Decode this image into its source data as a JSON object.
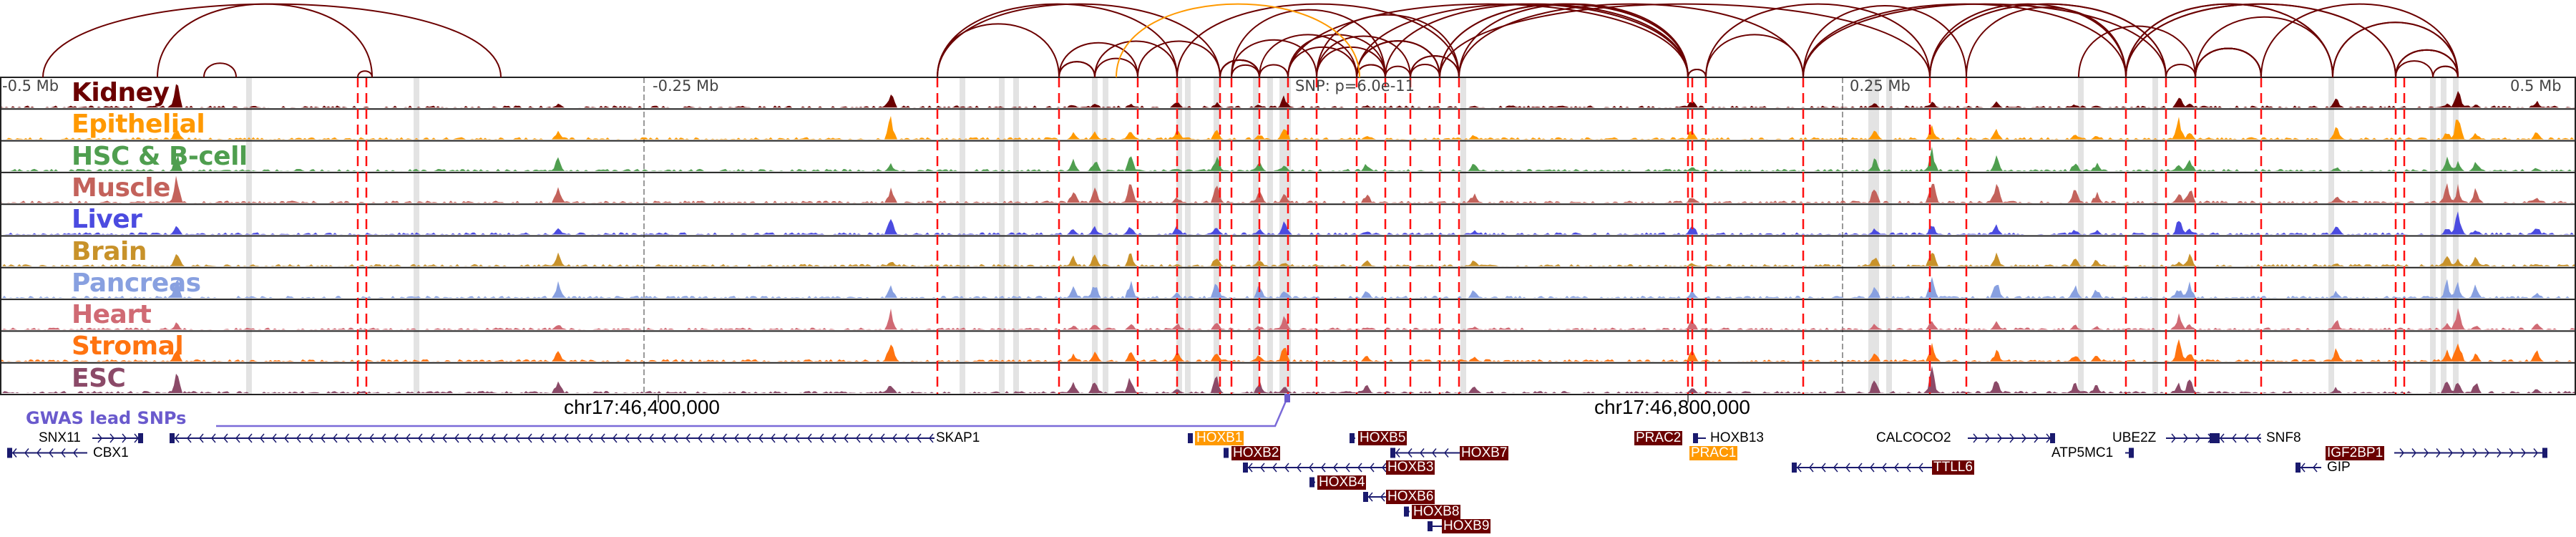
{
  "axis": {
    "labels": [
      "-0.5 Mb",
      "-0.25 Mb",
      "0.25 Mb",
      "0.5 Mb"
    ],
    "snp_label": "SNP: p=6.0e-11"
  },
  "tracks": [
    {
      "name": "Kidney",
      "color": "#6b0000"
    },
    {
      "name": "Epithelial",
      "color": "#ff9900"
    },
    {
      "name": "HSC & B-cell",
      "color": "#4f9e4f"
    },
    {
      "name": "Muscle",
      "color": "#c3625b"
    },
    {
      "name": "Liver",
      "color": "#4b4be0"
    },
    {
      "name": "Brain",
      "color": "#c8922a"
    },
    {
      "name": "Pancreas",
      "color": "#88a0e0"
    },
    {
      "name": "Heart",
      "color": "#d06a74"
    },
    {
      "name": "Stromal",
      "color": "#ff7310"
    },
    {
      "name": "ESC",
      "color": "#8b4a68"
    }
  ],
  "coordinates": [
    "chr17:46,400,000",
    "chr17:46,800,000"
  ],
  "gwas": {
    "label": "GWAS lead SNPs",
    "color": "#6a5acd"
  },
  "genes": [
    {
      "name": "SNX11",
      "style": "plain"
    },
    {
      "name": "CBX1",
      "style": "plain"
    },
    {
      "name": "SKAP1",
      "style": "plain"
    },
    {
      "name": "HOXB1",
      "style": "orange"
    },
    {
      "name": "HOXB2",
      "style": "dark"
    },
    {
      "name": "HOXB3",
      "style": "dark"
    },
    {
      "name": "HOXB4",
      "style": "dark"
    },
    {
      "name": "HOXB5",
      "style": "dark"
    },
    {
      "name": "HOXB6",
      "style": "dark"
    },
    {
      "name": "HOXB7",
      "style": "dark"
    },
    {
      "name": "HOXB8",
      "style": "dark"
    },
    {
      "name": "HOXB9",
      "style": "dark"
    },
    {
      "name": "PRAC2",
      "style": "dark"
    },
    {
      "name": "HOXB13",
      "style": "plain"
    },
    {
      "name": "PRAC1",
      "style": "orange"
    },
    {
      "name": "TTLL6",
      "style": "dark"
    },
    {
      "name": "CALCOCO2",
      "style": "plain"
    },
    {
      "name": "ATP5MC1",
      "style": "plain"
    },
    {
      "name": "UBE2Z",
      "style": "plain"
    },
    {
      "name": "SNF8",
      "style": "plain"
    },
    {
      "name": "IGF2BP1",
      "style": "dark"
    },
    {
      "name": "GIP",
      "style": "plain"
    }
  ]
}
